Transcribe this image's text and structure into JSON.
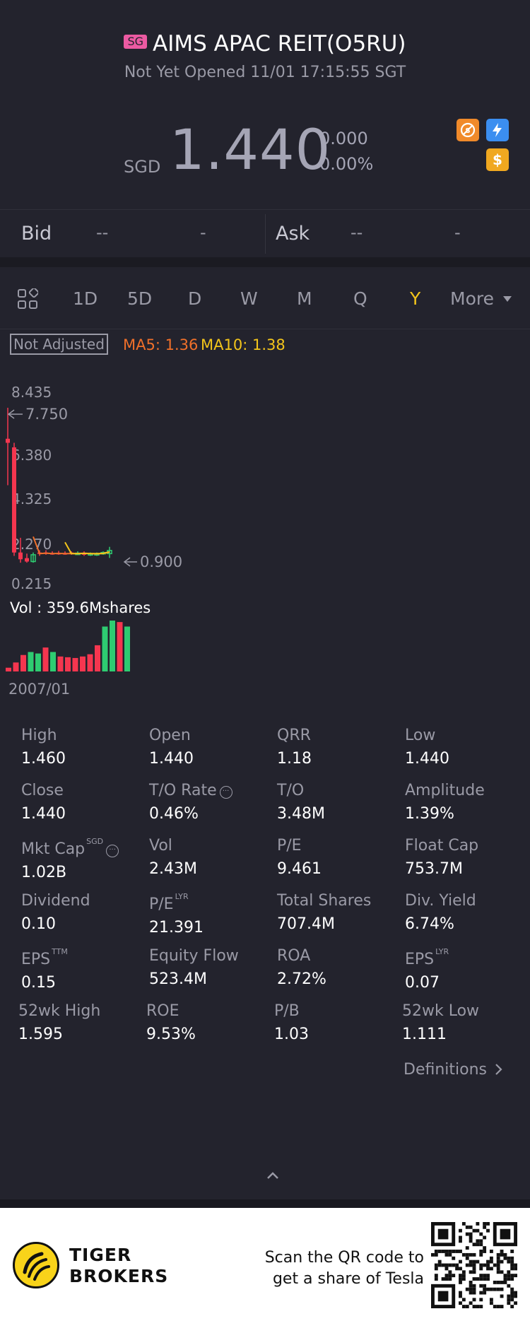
{
  "header": {
    "market_badge": "SG",
    "title": "AIMS APAC REIT(O5RU)",
    "status": "Not Yet Opened 11/01 17:15:55 SGT",
    "currency": "SGD",
    "price": "1.440",
    "change": "0.000",
    "change_pct": "0.00%",
    "icons": [
      "no-short-sell-icon",
      "margin-lightning-icon",
      "dollar-icon"
    ]
  },
  "quote": {
    "bid_label": "Bid",
    "bid_price": "--",
    "bid_size": "-",
    "ask_label": "Ask",
    "ask_price": "--",
    "ask_size": "-"
  },
  "periods": {
    "items": [
      "1D",
      "5D",
      "D",
      "W",
      "M",
      "Q",
      "Y"
    ],
    "active": "Y",
    "more_label": "More"
  },
  "chart": {
    "adjust_label": "Not Adjusted",
    "ma5": "MA5: 1.36",
    "ma10": "MA10: 1.38",
    "y_labels": [
      "8.435",
      "6.380",
      "4.325",
      "2.270",
      "0.215"
    ],
    "high_marker": "7.750",
    "low_marker": "0.900",
    "vol_label": "Vol  : 359.6Mshares",
    "start_date": "2007/01",
    "colors": {
      "up": "#2ecc71",
      "down": "#f5364f",
      "ma5": "#f0702a",
      "ma10": "#f3c51b"
    }
  },
  "chart_data": {
    "type": "candlestick",
    "title": "",
    "x_start": "2007/01",
    "ylim": [
      0.215,
      8.435
    ],
    "candles": [
      {
        "open": 6.38,
        "close": 6.2,
        "high": 7.75,
        "low": 4.325
      },
      {
        "open": 6.0,
        "close": 1.35,
        "high": 6.2,
        "low": 1.2
      },
      {
        "open": 1.35,
        "close": 1.05,
        "high": 2.0,
        "low": 0.9
      },
      {
        "open": 1.1,
        "close": 0.95,
        "high": 1.3,
        "low": 0.9
      },
      {
        "open": 0.95,
        "close": 1.25,
        "high": 1.35,
        "low": 0.9
      },
      {
        "open": 1.35,
        "close": 1.3,
        "high": 1.45,
        "low": 1.2
      },
      {
        "open": 1.35,
        "close": 1.3,
        "high": 1.45,
        "low": 1.25
      },
      {
        "open": 1.32,
        "close": 1.3,
        "high": 1.4,
        "low": 1.25
      },
      {
        "open": 1.33,
        "close": 1.3,
        "high": 1.42,
        "low": 1.25
      },
      {
        "open": 1.32,
        "close": 1.3,
        "high": 1.4,
        "low": 1.25
      },
      {
        "open": 1.35,
        "close": 1.3,
        "high": 1.4,
        "low": 1.25
      },
      {
        "open": 1.3,
        "close": 1.32,
        "high": 1.4,
        "low": 1.25
      },
      {
        "open": 1.32,
        "close": 1.25,
        "high": 1.4,
        "low": 1.2
      },
      {
        "open": 1.25,
        "close": 1.3,
        "high": 1.35,
        "low": 1.2
      },
      {
        "open": 1.27,
        "close": 1.3,
        "high": 1.35,
        "low": 1.2
      },
      {
        "open": 1.3,
        "close": 1.35,
        "high": 1.4,
        "low": 1.25
      },
      {
        "open": 1.3,
        "close": 1.44,
        "high": 1.6,
        "low": 1.11
      }
    ],
    "ma5": [
      null,
      null,
      null,
      null,
      2.05,
      1.3,
      1.32,
      1.3,
      1.31,
      1.3,
      1.3,
      1.3,
      1.32,
      1.3,
      1.29,
      1.31,
      1.36
    ],
    "ma10": [
      null,
      null,
      null,
      null,
      null,
      null,
      null,
      null,
      null,
      1.8,
      1.3,
      1.3,
      1.31,
      1.3,
      1.3,
      1.31,
      1.38
    ],
    "volume": [
      {
        "v": 25,
        "up": false
      },
      {
        "v": 60,
        "up": false
      },
      {
        "v": 110,
        "up": false
      },
      {
        "v": 130,
        "up": true
      },
      {
        "v": 120,
        "up": true
      },
      {
        "v": 160,
        "up": false
      },
      {
        "v": 130,
        "up": true
      },
      {
        "v": 100,
        "up": false
      },
      {
        "v": 95,
        "up": false
      },
      {
        "v": 90,
        "up": false
      },
      {
        "v": 100,
        "up": false
      },
      {
        "v": 115,
        "up": false
      },
      {
        "v": 175,
        "up": false
      },
      {
        "v": 300,
        "up": true
      },
      {
        "v": 340,
        "up": true
      },
      {
        "v": 330,
        "up": false
      },
      {
        "v": 300,
        "up": true
      }
    ]
  },
  "stats": [
    {
      "label": "High",
      "value": "1.460",
      "sup": "",
      "info": false
    },
    {
      "label": "Open",
      "value": "1.440",
      "sup": "",
      "info": false
    },
    {
      "label": "QRR",
      "value": "1.18",
      "sup": "",
      "info": false
    },
    {
      "label": "Low",
      "value": "1.440",
      "sup": "",
      "info": false
    },
    {
      "label": "Close",
      "value": "1.440",
      "sup": "",
      "info": false
    },
    {
      "label": "T/O Rate",
      "value": "0.46%",
      "sup": "",
      "info": true
    },
    {
      "label": "T/O",
      "value": "3.48M",
      "sup": "",
      "info": false
    },
    {
      "label": "Amplitude",
      "value": "1.39%",
      "sup": "",
      "info": false
    },
    {
      "label": "Mkt Cap",
      "value": "1.02B",
      "sup": "SGD",
      "info": true
    },
    {
      "label": "Vol",
      "value": "2.43M",
      "sup": "",
      "info": false
    },
    {
      "label": "P/E",
      "value": "9.461",
      "sup": "",
      "info": false
    },
    {
      "label": "Float Cap",
      "value": "753.7M",
      "sup": "",
      "info": false
    },
    {
      "label": "Dividend",
      "value": "0.10",
      "sup": "",
      "info": false
    },
    {
      "label": "P/E",
      "value": "21.391",
      "sup": "LYR",
      "info": false
    },
    {
      "label": "Total Shares",
      "value": "707.4M",
      "sup": "",
      "info": false
    },
    {
      "label": "Div. Yield",
      "value": "6.74%",
      "sup": "",
      "info": false
    },
    {
      "label": "EPS",
      "value": "0.15",
      "sup": "TTM",
      "info": false
    },
    {
      "label": "Equity Flow",
      "value": "523.4M",
      "sup": "",
      "info": false
    },
    {
      "label": "ROA",
      "value": "2.72%",
      "sup": "",
      "info": false
    },
    {
      "label": "EPS",
      "value": "0.07",
      "sup": "LYR",
      "info": false
    },
    {
      "label": "52wk High",
      "value": "1.595",
      "sup": "",
      "info": false
    },
    {
      "label": "ROE",
      "value": "9.53%",
      "sup": "",
      "info": false
    },
    {
      "label": "P/B",
      "value": "1.03",
      "sup": "",
      "info": false
    },
    {
      "label": "52wk Low",
      "value": "1.111",
      "sup": "",
      "info": false
    }
  ],
  "definitions_label": "Definitions",
  "banner": {
    "brand_line1": "TIGER",
    "brand_line2": "BROKERS",
    "scan_line1": "Scan the QR code to",
    "scan_line2": "get a share of Tesla"
  }
}
